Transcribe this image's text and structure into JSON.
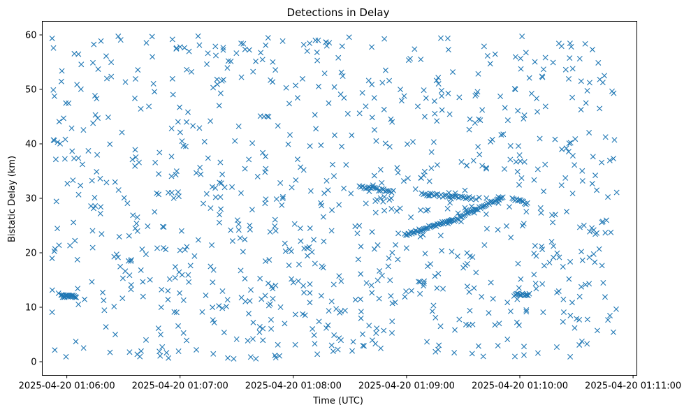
{
  "chart_data": {
    "type": "scatter",
    "title": "Detections in Delay",
    "xlabel": "Time (UTC)",
    "ylabel": "Bistatic Delay (km)",
    "marker": "x",
    "colors": {
      "series": "#1f77b4"
    },
    "grid": false,
    "xlim": [
      "2025-04-20 01:05:47",
      "2025-04-20 01:11:02"
    ],
    "ylim": [
      -2.5,
      62.5
    ],
    "x_ticks": [
      "2025-04-20 01:06:00",
      "2025-04-20 01:07:00",
      "2025-04-20 01:08:00",
      "2025-04-20 01:09:00",
      "2025-04-20 01:10:00",
      "2025-04-20 01:11:00"
    ],
    "y_ticks": [
      0,
      10,
      20,
      30,
      40,
      50,
      60
    ],
    "seed": 73,
    "background_clutter": {
      "count": 900,
      "x_range": [
        "2025-04-20 01:05:52",
        "2025-04-20 01:10:52"
      ],
      "y_range": [
        0.5,
        59.8
      ]
    },
    "target_tracks": [
      {
        "x_start": "2025-04-20 01:05:57",
        "x_end": "2025-04-20 01:06:05",
        "y_start": 12.1,
        "y_end": 12.0,
        "points": 22
      },
      {
        "x_start": "2025-04-20 01:08:35",
        "x_end": "2025-04-20 01:08:53",
        "y_start": 32.2,
        "y_end": 31.2,
        "points": 22
      },
      {
        "x_start": "2025-04-20 01:09:08",
        "x_end": "2025-04-20 01:09:35",
        "y_start": 30.8,
        "y_end": 30.0,
        "points": 30
      },
      {
        "x_start": "2025-04-20 01:08:59",
        "x_end": "2025-04-20 01:09:24",
        "y_start": 23.3,
        "y_end": 26.0,
        "points": 40
      },
      {
        "x_start": "2025-04-20 01:09:22",
        "x_end": "2025-04-20 01:09:51",
        "y_start": 25.5,
        "y_end": 30.3,
        "points": 45
      },
      {
        "x_start": "2025-04-20 01:09:56",
        "x_end": "2025-04-20 01:10:04",
        "y_start": 30.0,
        "y_end": 29.0,
        "points": 12
      },
      {
        "x_start": "2025-04-20 01:09:57",
        "x_end": "2025-04-20 01:10:05",
        "y_start": 12.3,
        "y_end": 12.3,
        "points": 14
      }
    ]
  }
}
